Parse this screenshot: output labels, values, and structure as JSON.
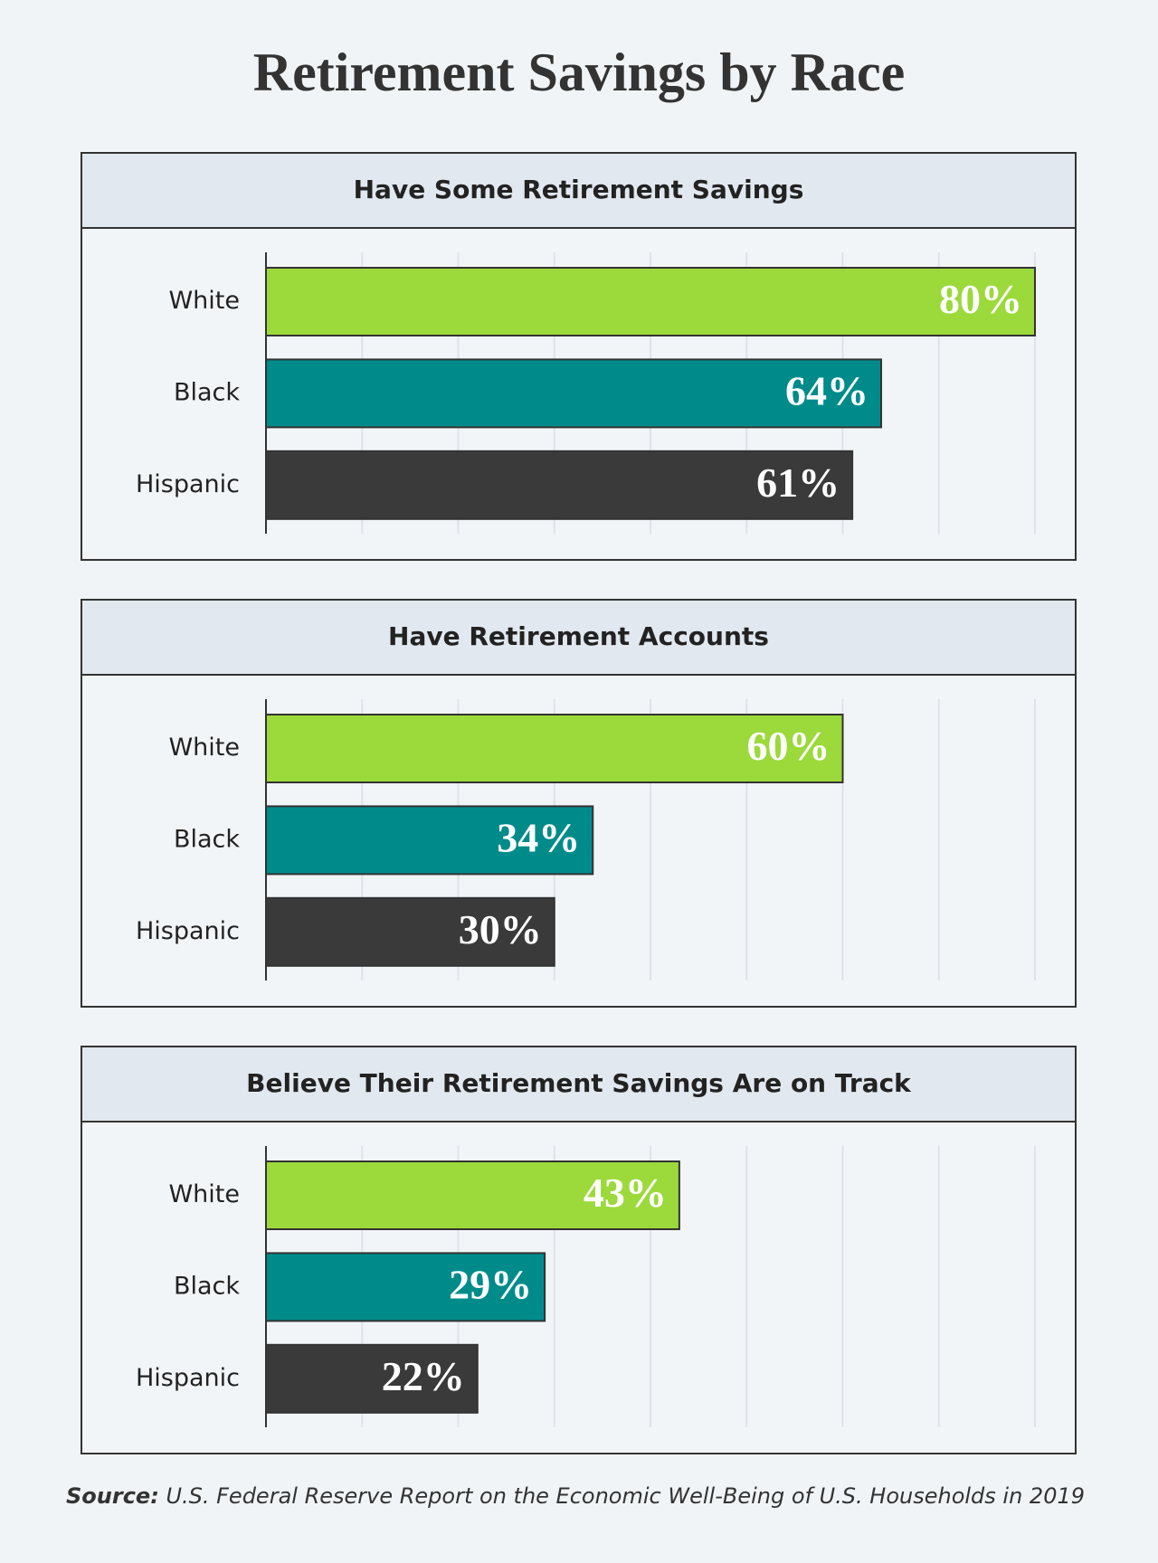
{
  "title": "Retirement Savings by Race",
  "source": {
    "label": "Source:",
    "text": "U.S. Federal Reserve Report on the Economic Well-Being of U.S. Households in 2019"
  },
  "chart_data": [
    {
      "type": "bar",
      "orientation": "horizontal",
      "title": "Have Some Retirement Savings",
      "categories": [
        "White",
        "Black",
        "Hispanic"
      ],
      "values": [
        80,
        64,
        61
      ],
      "value_labels": [
        "80%",
        "64%",
        "61%"
      ],
      "colors": [
        "#9cd93b",
        "#008b8b",
        "#3a3a3a"
      ],
      "xlim": [
        0,
        80
      ],
      "xticks": [
        10,
        20,
        30,
        40,
        50,
        60,
        70,
        80
      ],
      "grid": true
    },
    {
      "type": "bar",
      "orientation": "horizontal",
      "title": "Have Retirement Accounts",
      "categories": [
        "White",
        "Black",
        "Hispanic"
      ],
      "values": [
        60,
        34,
        30
      ],
      "value_labels": [
        "60%",
        "34%",
        "30%"
      ],
      "colors": [
        "#9cd93b",
        "#008b8b",
        "#3a3a3a"
      ],
      "xlim": [
        0,
        80
      ],
      "xticks": [
        10,
        20,
        30,
        40,
        50,
        60,
        70,
        80
      ],
      "grid": true
    },
    {
      "type": "bar",
      "orientation": "horizontal",
      "title": "Believe Their Retirement Savings Are on Track",
      "categories": [
        "White",
        "Black",
        "Hispanic"
      ],
      "values": [
        43,
        29,
        22
      ],
      "value_labels": [
        "43%",
        "29%",
        "22%"
      ],
      "colors": [
        "#9cd93b",
        "#008b8b",
        "#3a3a3a"
      ],
      "xlim": [
        0,
        80
      ],
      "xticks": [
        10,
        20,
        30,
        40,
        50,
        60,
        70,
        80
      ],
      "grid": true
    }
  ]
}
